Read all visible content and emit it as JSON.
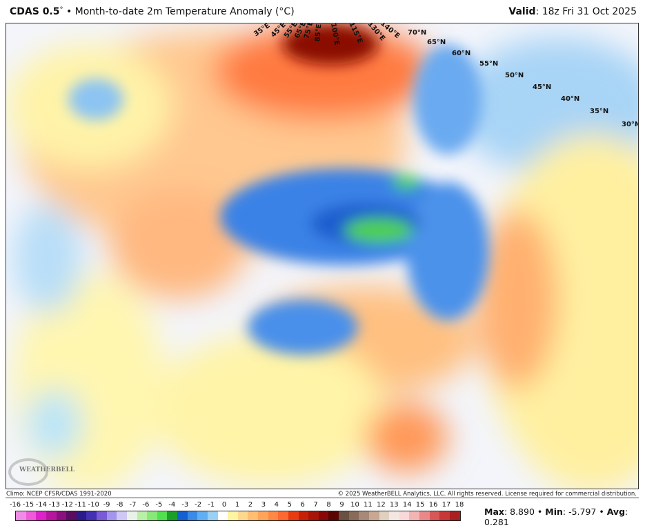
{
  "header": {
    "model": "CDAS 0.5",
    "degree": "°",
    "separator": "•",
    "title": "Month-to-date 2m Temperature Anomaly (°C)",
    "valid_label": "Valid",
    "valid_value": ": 18z Fri 31 Oct 2025"
  },
  "map": {
    "lat_labels": [
      "70°N",
      "65°N",
      "60°N",
      "55°N",
      "50°N",
      "45°N",
      "40°N",
      "35°N",
      "30°N"
    ],
    "lon_labels": [
      "35°E",
      "45°E",
      "55°E",
      "65°E",
      "75°E",
      "85°E",
      "100°E",
      "115°E",
      "130°E",
      "140°E"
    ],
    "logo_text": "WEATHERBELL"
  },
  "footer": {
    "climo": "Climo: NCEP CFSR/CDAS 1991-2020",
    "copyright": "© 2025 WeatherBELL Analytics, LLC. All rights reserved. License required for commercial distribution."
  },
  "colorbar": {
    "ticks": [
      "-16",
      "-15",
      "-14",
      "-13",
      "-12",
      "-11",
      "-10",
      "-9",
      "-8",
      "-7",
      "-6",
      "-5",
      "-4",
      "-3",
      "-2",
      "-1",
      "0",
      "1",
      "2",
      "3",
      "4",
      "5",
      "6",
      "7",
      "8",
      "9",
      "10",
      "11",
      "12",
      "13",
      "14",
      "15",
      "16",
      "17",
      "18"
    ],
    "colors": [
      "#f08ce6",
      "#ee5ad8",
      "#dc22c8",
      "#b8159f",
      "#8c0f80",
      "#5a0c60",
      "#2a1a8a",
      "#4430b4",
      "#7a5ad8",
      "#a494ee",
      "#cfc8f4",
      "#e8f2e8",
      "#b8f0a8",
      "#88e878",
      "#50e050",
      "#1aa028",
      "#1560d0",
      "#3a8ae8",
      "#62aef2",
      "#98d0f6",
      "#ffffff",
      "#fff4a0",
      "#ffd890",
      "#ffbe70",
      "#ffa458",
      "#ff8844",
      "#ff6830",
      "#e83c10",
      "#c82006",
      "#a81408",
      "#880808",
      "#5a0404",
      "#6a5040",
      "#8a6a58",
      "#a88878",
      "#c8a890",
      "#e0d0c0",
      "#f4e6e0",
      "#f8d8d8",
      "#f4b4b4",
      "#e88888",
      "#d85858",
      "#c83838",
      "#a82020"
    ]
  },
  "stats": {
    "max_label": "Max",
    "max": "8.890",
    "min_label": "Min",
    "min": "-5.797",
    "avg_label": "Avg",
    "avg": "0.281"
  }
}
